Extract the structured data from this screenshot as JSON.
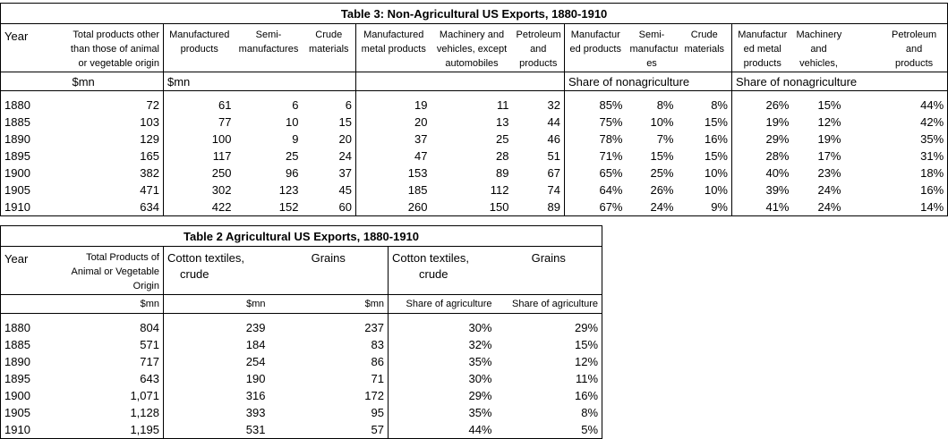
{
  "table3": {
    "title": "Table 3: Non-Agricultural US Exports, 1880-1910",
    "headers": {
      "year": "Year",
      "total_lines": [
        "Total products other",
        "than those of animal",
        "or vegetable origin"
      ],
      "manufactured": [
        "Manufactured",
        "products"
      ],
      "semi": [
        "Semi-",
        "manufactures"
      ],
      "crude": [
        "Crude",
        "materials"
      ],
      "metal": [
        "Manufactured",
        "metal products"
      ],
      "machinery": [
        "Machinery and",
        "vehicles, except",
        "automobiles"
      ],
      "petroleum": [
        "Petroleum",
        "and",
        "products"
      ],
      "share_manuf": [
        "Manufactur",
        "ed products"
      ],
      "share_semi": [
        "Semi-",
        "manufactur",
        "es"
      ],
      "share_crude": [
        "Crude",
        "materials"
      ],
      "share_metal": [
        "Manufactur",
        "ed metal",
        "products"
      ],
      "share_mach": [
        "Machinery",
        "and",
        "vehicles,"
      ],
      "share_petro": [
        "Petroleum",
        "and",
        "products"
      ]
    },
    "units": {
      "total": "$mn",
      "group1": "$mn",
      "share1": "Share of nonagriculture",
      "share2": "Share of nonagriculture"
    },
    "rows": [
      [
        "1880",
        "72",
        "61",
        "6",
        "6",
        "19",
        "11",
        "32",
        "85%",
        "8%",
        "8%",
        "26%",
        "15%",
        "44%"
      ],
      [
        "1885",
        "103",
        "77",
        "10",
        "15",
        "20",
        "13",
        "44",
        "75%",
        "10%",
        "15%",
        "19%",
        "12%",
        "42%"
      ],
      [
        "1890",
        "129",
        "100",
        "9",
        "20",
        "37",
        "25",
        "46",
        "78%",
        "7%",
        "16%",
        "29%",
        "19%",
        "35%"
      ],
      [
        "1895",
        "165",
        "117",
        "25",
        "24",
        "47",
        "28",
        "51",
        "71%",
        "15%",
        "15%",
        "28%",
        "17%",
        "31%"
      ],
      [
        "1900",
        "382",
        "250",
        "96",
        "37",
        "153",
        "89",
        "67",
        "65%",
        "25%",
        "10%",
        "40%",
        "23%",
        "18%"
      ],
      [
        "1905",
        "471",
        "302",
        "123",
        "45",
        "185",
        "112",
        "74",
        "64%",
        "26%",
        "10%",
        "39%",
        "24%",
        "16%"
      ],
      [
        "1910",
        "634",
        "422",
        "152",
        "60",
        "260",
        "150",
        "89",
        "67%",
        "24%",
        "9%",
        "41%",
        "24%",
        "14%"
      ]
    ]
  },
  "table2": {
    "title": "Table 2 Agricultural US Exports, 1880-1910",
    "headers": {
      "year": "Year",
      "total_lines": [
        "Total Products of",
        "Animal or Vegetable",
        "Origin"
      ],
      "cotton": [
        "Cotton textiles,",
        "crude"
      ],
      "grains": "Grains",
      "share_cotton": [
        "Cotton textiles,",
        "crude"
      ],
      "share_grains": "Grains"
    },
    "units": {
      "total": "$mn",
      "cotton": "$mn",
      "grains": "$mn",
      "share_cotton": "Share of agriculture",
      "share_grains": "Share of agriculture"
    },
    "rows": [
      [
        "1880",
        "804",
        "239",
        "237",
        "30%",
        "29%"
      ],
      [
        "1885",
        "571",
        "184",
        "83",
        "32%",
        "15%"
      ],
      [
        "1890",
        "717",
        "254",
        "86",
        "35%",
        "12%"
      ],
      [
        "1895",
        "643",
        "190",
        "71",
        "30%",
        "11%"
      ],
      [
        "1900",
        "1,071",
        "316",
        "172",
        "29%",
        "16%"
      ],
      [
        "1905",
        "1,128",
        "393",
        "95",
        "35%",
        "8%"
      ],
      [
        "1910",
        "1,195",
        "531",
        "57",
        "44%",
        "5%"
      ]
    ]
  }
}
